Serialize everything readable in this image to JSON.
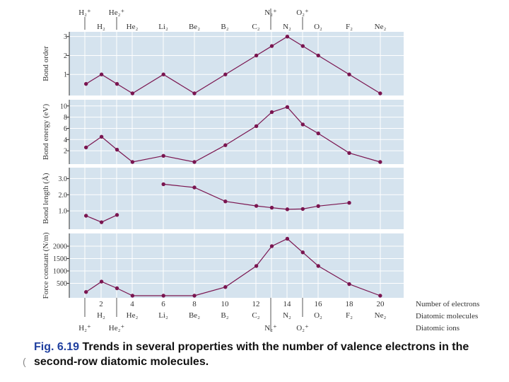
{
  "top_labels": {
    "ions": [
      "H₂⁺",
      "He₂⁺",
      "N₂⁺",
      "O₂⁺"
    ],
    "molecules": [
      "H₂",
      "He₂",
      "Li₂",
      "Be₂",
      "B₂",
      "C₂",
      "N₂",
      "O₂",
      "F₂",
      "Ne₂"
    ]
  },
  "bottom_labels": {
    "electron_ticks": [
      "2",
      "4",
      "6",
      "8",
      "10",
      "12",
      "14",
      "16",
      "18",
      "20"
    ],
    "molecules": [
      "H₂",
      "He₂",
      "Li₂",
      "Be₂",
      "B₂",
      "C₂",
      "N₂",
      "O₂",
      "F₂",
      "Ne₂"
    ],
    "ions": [
      "H₂⁺",
      "He₂⁺",
      "N₂⁺",
      "O₂⁺"
    ]
  },
  "legend": {
    "electrons": "Number of electrons",
    "molecules": "Diatomic molecules",
    "ions": "Diatomic ions"
  },
  "colors": {
    "marker": "#7a1550",
    "panel": "#d5e3ee",
    "grid": "#ffffff",
    "axis": "#333333",
    "caption_number": "#1f3f9f"
  },
  "caption": {
    "number": "Fig. 6.19",
    "text": "Trends in several properties with the number of valence electrons in the second-row diatomic molecules.",
    "stray_mark": "("
  },
  "chart_data": [
    {
      "type": "line",
      "ylabel": "Bond order",
      "yticks": [
        "1",
        "2",
        "3"
      ],
      "ylim": [
        0,
        3.1
      ],
      "series": [
        {
          "name": "Bond order",
          "x": [
            1,
            2,
            3,
            4,
            6,
            8,
            10,
            12,
            13,
            14,
            15,
            16,
            18,
            20
          ],
          "values": [
            0.5,
            1,
            0.5,
            0,
            1,
            0,
            1,
            2,
            2.5,
            3,
            2.5,
            2,
            1,
            0
          ]
        }
      ]
    },
    {
      "type": "line",
      "ylabel": "Bond energy (eV)",
      "yticks": [
        "2",
        "4",
        "6",
        "8",
        "10"
      ],
      "ylim": [
        0,
        10.6
      ],
      "series": [
        {
          "name": "Bond energy",
          "x": [
            1,
            2,
            3,
            4,
            6,
            8,
            10,
            12,
            13,
            14,
            15,
            16,
            18,
            20
          ],
          "values": [
            2.6,
            4.5,
            2.2,
            0,
            1.1,
            0,
            3.0,
            6.4,
            8.9,
            9.8,
            6.7,
            5.1,
            1.6,
            0
          ]
        }
      ]
    },
    {
      "type": "line",
      "ylabel": "Bond length (Å)",
      "yticks": [
        "1.0",
        "2.0",
        "3.0"
      ],
      "ylim": [
        0,
        3.5
      ],
      "series": [
        {
          "name": "Bond length (ions)",
          "x": [
            1,
            2,
            3
          ],
          "values": [
            0.7,
            0.3,
            0.75
          ]
        },
        {
          "name": "Bond length (molecules)",
          "x": [
            6,
            8,
            10,
            12,
            13,
            14,
            15,
            16,
            18
          ],
          "values": [
            2.65,
            2.45,
            1.59,
            1.31,
            1.2,
            1.1,
            1.12,
            1.3,
            1.5
          ]
        }
      ]
    },
    {
      "type": "line",
      "ylabel": "Force constant (N/m)",
      "yticks": [
        "500",
        "1000",
        "1500",
        "2000"
      ],
      "ylim": [
        0,
        2400
      ],
      "series": [
        {
          "name": "Force constant",
          "x": [
            1,
            2,
            3,
            4,
            6,
            8,
            10,
            12,
            13,
            14,
            15,
            16,
            18,
            20
          ],
          "values": [
            150,
            570,
            300,
            0,
            0,
            0,
            350,
            1200,
            2000,
            2300,
            1750,
            1200,
            470,
            0
          ]
        }
      ]
    }
  ]
}
